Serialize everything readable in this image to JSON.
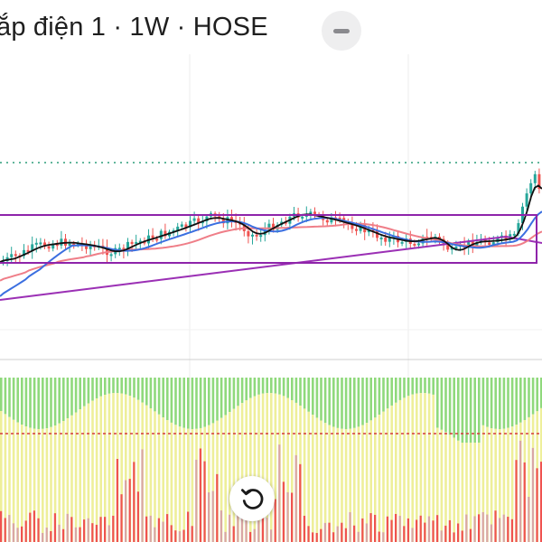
{
  "header": {
    "title": "ắp điện 1 · 1W · HOSE",
    "collapse_button_icon": "minus-icon"
  },
  "controls": {
    "reset_button_icon": "rotate-ccw-icon"
  },
  "colors": {
    "up": "#26a69a",
    "down": "#ef5350",
    "ma_black": "#111111",
    "ma_blue": "#3b6fe0",
    "ma_pink": "#ef7e88",
    "ma_purple": "#9b30b5",
    "range_box": "#8e24aa",
    "dotted_level": "#2e9e7a",
    "volume_up": "#ef5350",
    "osc_green": "#8fd97c",
    "osc_yellow": "#eeef9a",
    "osc_threshold": "#d43b3b"
  }
}
